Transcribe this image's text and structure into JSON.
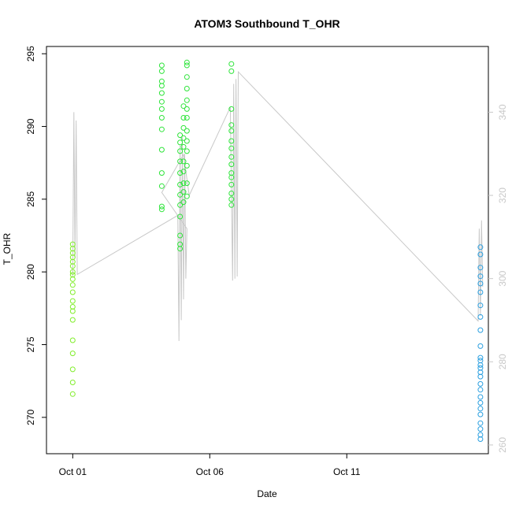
{
  "chart_data": {
    "type": "scatter",
    "title": "ATOM3 Southbound T_OHR",
    "xlabel": "Date",
    "ylabel": "T_OHR",
    "x_unit": "date",
    "xlim": [
      "2024-09-30 01:00",
      "2024-10-16 04:00"
    ],
    "ylim": [
      267.5,
      295.5
    ],
    "y2lim": [
      257.9,
      355.8
    ],
    "x_ticks": [
      {
        "date": "2024-10-01",
        "label": "Oct 01"
      },
      {
        "date": "2024-10-06",
        "label": "Oct 06"
      },
      {
        "date": "2024-10-11",
        "label": "Oct 11"
      }
    ],
    "y_ticks": [
      270,
      275,
      280,
      285,
      290,
      295
    ],
    "y2_ticks": [
      260,
      280,
      300,
      320,
      340
    ],
    "grid": false,
    "colors": {
      "green_a": "#80ee2a",
      "green_b": "#2ee43a",
      "blue": "#2a9fe0",
      "secondary_line": "#c8c8c8",
      "axis": "#000000",
      "secondary_axis": "#c8c8c8"
    },
    "series": [
      {
        "color": "#80ee2a",
        "points": [
          [
            "2024-10-01 00:00",
            281.9
          ],
          [
            "2024-10-01 00:00",
            281.6
          ],
          [
            "2024-10-01 00:00",
            281.3
          ],
          [
            "2024-10-01 00:00",
            281.0
          ],
          [
            "2024-10-01 00:00",
            280.7
          ],
          [
            "2024-10-01 00:00",
            280.4
          ],
          [
            "2024-10-01 00:00",
            280.0
          ],
          [
            "2024-10-01 00:00",
            279.8
          ],
          [
            "2024-10-01 00:00",
            279.5
          ],
          [
            "2024-10-01 00:00",
            279.1
          ],
          [
            "2024-10-01 00:00",
            278.6
          ],
          [
            "2024-10-01 00:00",
            278.0
          ],
          [
            "2024-10-01 00:00",
            277.6
          ],
          [
            "2024-10-01 00:00",
            277.3
          ],
          [
            "2024-10-01 00:00",
            276.7
          ],
          [
            "2024-10-01 00:00",
            275.3
          ],
          [
            "2024-10-01 00:00",
            274.4
          ],
          [
            "2024-10-01 00:00",
            273.3
          ],
          [
            "2024-10-01 00:00",
            272.4
          ],
          [
            "2024-10-01 00:00",
            271.6
          ]
        ]
      },
      {
        "color": "#2ee43a",
        "points": [
          [
            "2024-10-04 06:00",
            294.2
          ],
          [
            "2024-10-04 06:00",
            293.8
          ],
          [
            "2024-10-04 06:00",
            293.1
          ],
          [
            "2024-10-04 06:00",
            292.8
          ],
          [
            "2024-10-04 06:00",
            292.3
          ],
          [
            "2024-10-04 06:00",
            291.7
          ],
          [
            "2024-10-04 06:00",
            291.2
          ],
          [
            "2024-10-04 06:00",
            290.6
          ],
          [
            "2024-10-04 06:00",
            289.8
          ],
          [
            "2024-10-04 06:00",
            288.4
          ],
          [
            "2024-10-04 06:00",
            286.8
          ],
          [
            "2024-10-04 06:00",
            285.9
          ],
          [
            "2024-10-04 06:00",
            284.5
          ],
          [
            "2024-10-04 06:00",
            284.3
          ],
          [
            "2024-10-04 22:00",
            289.4
          ],
          [
            "2024-10-04 22:00",
            288.9
          ],
          [
            "2024-10-04 22:00",
            288.3
          ],
          [
            "2024-10-04 22:00",
            287.6
          ],
          [
            "2024-10-04 22:00",
            286.8
          ],
          [
            "2024-10-04 22:00",
            286.0
          ],
          [
            "2024-10-04 22:00",
            285.3
          ],
          [
            "2024-10-04 22:00",
            284.6
          ],
          [
            "2024-10-04 22:00",
            283.8
          ],
          [
            "2024-10-04 22:00",
            282.5
          ],
          [
            "2024-10-04 22:00",
            281.9
          ],
          [
            "2024-10-04 22:00",
            281.6
          ],
          [
            "2024-10-05 01:00",
            291.4
          ],
          [
            "2024-10-05 01:00",
            290.6
          ],
          [
            "2024-10-05 01:00",
            289.9
          ],
          [
            "2024-10-05 01:00",
            289.2
          ],
          [
            "2024-10-05 01:00",
            288.6
          ],
          [
            "2024-10-05 01:00",
            287.6
          ],
          [
            "2024-10-05 01:00",
            286.9
          ],
          [
            "2024-10-05 01:00",
            286.1
          ],
          [
            "2024-10-05 01:00",
            285.5
          ],
          [
            "2024-10-05 01:00",
            284.8
          ],
          [
            "2024-10-05 04:00",
            294.4
          ],
          [
            "2024-10-05 04:00",
            294.2
          ],
          [
            "2024-10-05 04:00",
            293.4
          ],
          [
            "2024-10-05 04:00",
            292.6
          ],
          [
            "2024-10-05 04:00",
            291.8
          ],
          [
            "2024-10-05 04:00",
            291.2
          ],
          [
            "2024-10-05 04:00",
            290.6
          ],
          [
            "2024-10-05 04:00",
            289.7
          ],
          [
            "2024-10-05 04:00",
            289.0
          ],
          [
            "2024-10-05 04:00",
            288.3
          ],
          [
            "2024-10-05 04:00",
            287.3
          ],
          [
            "2024-10-05 04:00",
            286.1
          ],
          [
            "2024-10-05 04:00",
            285.2
          ],
          [
            "2024-10-06 19:00",
            294.3
          ],
          [
            "2024-10-06 19:00",
            293.8
          ],
          [
            "2024-10-06 19:00",
            291.2
          ],
          [
            "2024-10-06 19:00",
            290.1
          ],
          [
            "2024-10-06 19:00",
            289.7
          ],
          [
            "2024-10-06 19:00",
            289.0
          ],
          [
            "2024-10-06 19:00",
            288.5
          ],
          [
            "2024-10-06 19:00",
            287.9
          ],
          [
            "2024-10-06 19:00",
            287.4
          ],
          [
            "2024-10-06 19:00",
            286.8
          ],
          [
            "2024-10-06 19:00",
            286.5
          ],
          [
            "2024-10-06 19:00",
            286.0
          ],
          [
            "2024-10-06 19:00",
            285.4
          ],
          [
            "2024-10-06 19:00",
            285.0
          ],
          [
            "2024-10-06 19:00",
            284.6
          ]
        ]
      },
      {
        "color": "#2a9fe0",
        "points": [
          [
            "2024-10-15 21:00",
            281.7
          ],
          [
            "2024-10-15 21:00",
            281.2
          ],
          [
            "2024-10-15 21:00",
            280.3
          ],
          [
            "2024-10-15 21:00",
            279.7
          ],
          [
            "2024-10-15 21:00",
            279.2
          ],
          [
            "2024-10-15 21:00",
            278.6
          ],
          [
            "2024-10-15 21:00",
            277.7
          ],
          [
            "2024-10-15 21:00",
            276.9
          ],
          [
            "2024-10-15 21:00",
            276.0
          ],
          [
            "2024-10-15 21:00",
            274.9
          ],
          [
            "2024-10-15 21:00",
            274.1
          ],
          [
            "2024-10-15 21:00",
            273.9
          ],
          [
            "2024-10-15 21:00",
            273.6
          ],
          [
            "2024-10-15 21:00",
            273.4
          ],
          [
            "2024-10-15 21:00",
            273.1
          ],
          [
            "2024-10-15 21:00",
            272.8
          ],
          [
            "2024-10-15 21:00",
            272.3
          ],
          [
            "2024-10-15 21:00",
            271.9
          ],
          [
            "2024-10-15 21:00",
            271.4
          ],
          [
            "2024-10-15 21:00",
            271.0
          ],
          [
            "2024-10-15 21:00",
            270.6
          ],
          [
            "2024-10-15 21:00",
            270.2
          ],
          [
            "2024-10-15 21:00",
            269.6
          ],
          [
            "2024-10-15 21:00",
            269.2
          ],
          [
            "2024-10-15 21:00",
            268.8
          ],
          [
            "2024-10-15 21:00",
            268.5
          ]
        ]
      }
    ],
    "secondary_line": {
      "axis": "right",
      "color": "#c8c8c8",
      "points": [
        [
          "2024-10-01 00:00",
          300.5
        ],
        [
          "2024-10-01 01:00",
          340.0
        ],
        [
          "2024-10-01 02:00",
          305.0
        ],
        [
          "2024-10-01 03:00",
          338.0
        ],
        [
          "2024-10-01 04:00",
          301.0
        ],
        [
          "2024-10-04 20:00",
          315.2
        ],
        [
          "2024-10-04 21:00",
          285.0
        ],
        [
          "2024-10-04 22:00",
          332.0
        ],
        [
          "2024-10-04 23:00",
          290.0
        ],
        [
          "2024-10-05 00:00",
          334.0
        ],
        [
          "2024-10-05 01:00",
          295.0
        ],
        [
          "2024-10-05 02:00",
          330.0
        ],
        [
          "2024-10-05 03:00",
          300.0
        ],
        [
          "2024-10-05 04:00",
          312.0
        ],
        [
          "2024-10-04 06:00",
          320.7
        ],
        [
          "2024-10-05 01:00",
          329.8
        ],
        [
          "2024-10-05 06:00",
          320.0
        ],
        [
          "2024-10-06 18:00",
          341.2
        ],
        [
          "2024-10-06 20:00",
          299.5
        ],
        [
          "2024-10-06 21:00",
          346.8
        ],
        [
          "2024-10-06 22:00",
          300.0
        ],
        [
          "2024-10-06 23:00",
          348.0
        ],
        [
          "2024-10-07 00:00",
          300.5
        ],
        [
          "2024-10-07 01:00",
          349.7
        ],
        [
          "2024-10-15 19:00",
          289.8
        ],
        [
          "2024-10-15 20:00",
          312.0
        ],
        [
          "2024-10-15 21:00",
          291.0
        ],
        [
          "2024-10-15 22:00",
          314.0
        ],
        [
          "2024-10-15 23:00",
          298.0
        ]
      ]
    }
  }
}
